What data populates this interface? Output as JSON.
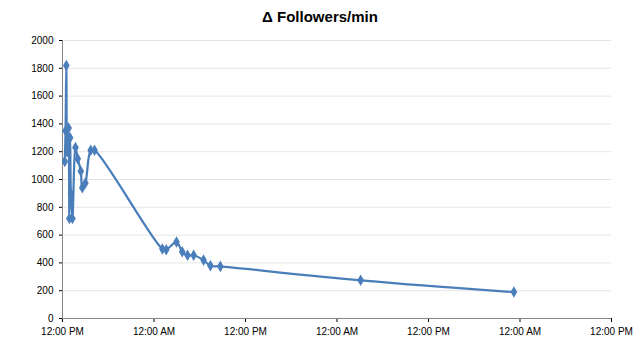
{
  "chart_data": {
    "type": "line",
    "title": "Δ Followers/min",
    "x": [
      0.3,
      0.4,
      0.5,
      0.6,
      0.7,
      0.8,
      0.9,
      1.0,
      1.1,
      1.3,
      1.7,
      2.0,
      2.4,
      2.6,
      3.0,
      3.7,
      4.2,
      13.1,
      13.6,
      14.95,
      15.7,
      16.4,
      17.2,
      18.5,
      19.4,
      20.7,
      39.1,
      59.2
    ],
    "values": [
      1130,
      1350,
      1820,
      1200,
      1280,
      1370,
      720,
      1300,
      900,
      720,
      1230,
      1150,
      1060,
      940,
      975,
      1210,
      1210,
      500,
      495,
      550,
      480,
      455,
      455,
      420,
      380,
      375,
      275,
      190
    ],
    "color": "#4a7ebb",
    "marker": "diamond",
    "line_style": "smooth",
    "xlim": [
      0,
      72
    ],
    "xticks": [
      {
        "value": 0,
        "label": "12:00 PM"
      },
      {
        "value": 12,
        "label": "12:00 AM"
      },
      {
        "value": 24,
        "label": "12:00 PM"
      },
      {
        "value": 36,
        "label": "12:00 AM"
      },
      {
        "value": 48,
        "label": "12:00 PM"
      },
      {
        "value": 60,
        "label": "12:00 AM"
      },
      {
        "value": 72,
        "label": "12:00 PM"
      }
    ],
    "ylim": [
      0,
      2000
    ],
    "yticks": [
      0,
      200,
      400,
      600,
      800,
      1000,
      1200,
      1400,
      1600,
      1800,
      2000
    ],
    "grid": true
  }
}
